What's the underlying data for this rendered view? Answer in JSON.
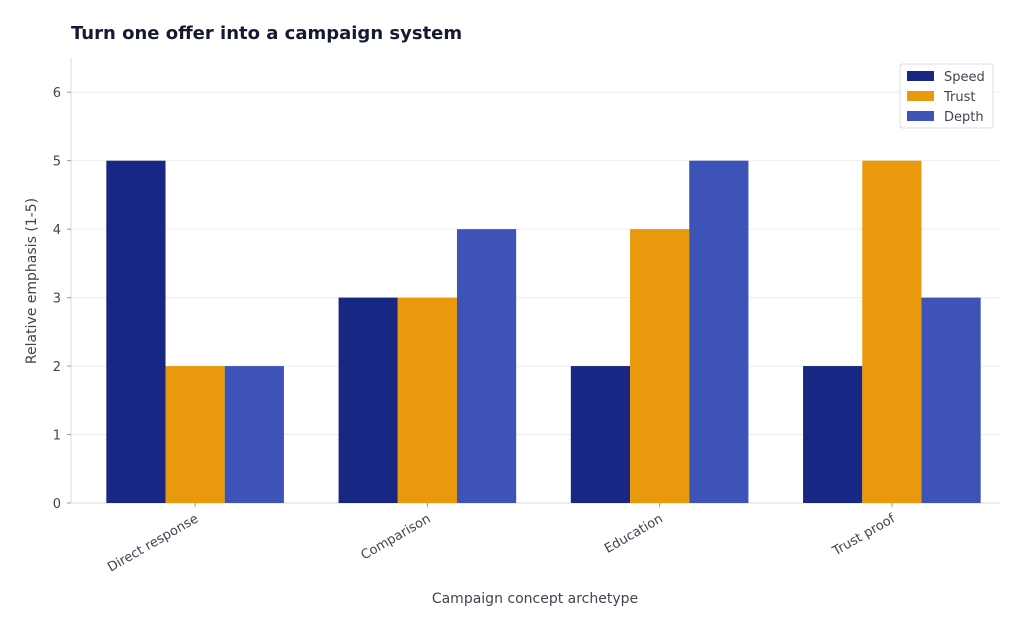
{
  "chart_data": {
    "type": "bar",
    "title": "Turn one offer into a campaign system",
    "xlabel": "Campaign concept archetype",
    "ylabel": "Relative emphasis (1-5)",
    "categories": [
      "Direct response",
      "Comparison",
      "Education",
      "Trust proof"
    ],
    "series": [
      {
        "name": "Speed",
        "color": "#172783",
        "values": [
          5,
          3,
          2,
          2
        ]
      },
      {
        "name": "Trust",
        "color": "#e99a0c",
        "values": [
          2,
          3,
          4,
          5
        ]
      },
      {
        "name": "Depth",
        "color": "#3e53b8",
        "values": [
          2,
          4,
          5,
          3
        ]
      }
    ],
    "ylim": [
      0,
      6.5
    ],
    "yticks": [
      0,
      1,
      2,
      3,
      4,
      5,
      6
    ],
    "grid": true,
    "legend_position": "top-right"
  }
}
